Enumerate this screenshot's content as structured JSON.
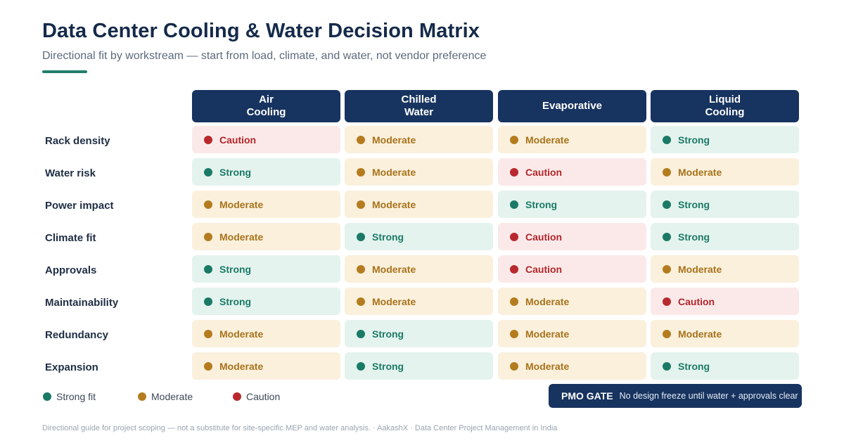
{
  "header": {
    "title": "Data Center Cooling & Water Decision Matrix",
    "subtitle": "Directional fit by workstream — start from load, climate, and water, not vendor preference"
  },
  "columns": [
    {
      "line1": "Air",
      "line2": "Cooling"
    },
    {
      "line1": "Chilled",
      "line2": "Water"
    },
    {
      "line1": "Evaporative",
      "line2": ""
    },
    {
      "line1": "Liquid",
      "line2": "Cooling"
    }
  ],
  "rows": [
    {
      "label": "Rack density",
      "cells": [
        "Caution",
        "Moderate",
        "Moderate",
        "Strong"
      ]
    },
    {
      "label": "Water risk",
      "cells": [
        "Strong",
        "Moderate",
        "Caution",
        "Moderate"
      ]
    },
    {
      "label": "Power impact",
      "cells": [
        "Moderate",
        "Moderate",
        "Strong",
        "Strong"
      ]
    },
    {
      "label": "Climate fit",
      "cells": [
        "Moderate",
        "Strong",
        "Caution",
        "Strong"
      ]
    },
    {
      "label": "Approvals",
      "cells": [
        "Strong",
        "Moderate",
        "Caution",
        "Moderate"
      ]
    },
    {
      "label": "Maintainability",
      "cells": [
        "Strong",
        "Moderate",
        "Moderate",
        "Caution"
      ]
    },
    {
      "label": "Redundancy",
      "cells": [
        "Moderate",
        "Strong",
        "Moderate",
        "Moderate"
      ]
    },
    {
      "label": "Expansion",
      "cells": [
        "Moderate",
        "Strong",
        "Moderate",
        "Strong"
      ]
    }
  ],
  "levels": {
    "Strong": {
      "dot": "#1a7a66",
      "text": "#1a7a66",
      "bg": "#e4f3ee"
    },
    "Moderate": {
      "dot": "#b57c1f",
      "text": "#a8721a",
      "bg": "#faf0dc"
    },
    "Caution": {
      "dot": "#b8292e",
      "text": "#b0272b",
      "bg": "#fbe9e9"
    }
  },
  "legend": [
    {
      "label": "Strong fit",
      "color": "#1a7a66"
    },
    {
      "label": "Moderate",
      "color": "#b57c1f"
    },
    {
      "label": "Caution",
      "color": "#b8292e"
    }
  ],
  "gate": {
    "label": "PMO GATE",
    "text": "No design freeze until water + approvals clear"
  },
  "footer": "Directional guide for project scoping — not a substitute for site-specific MEP and water analysis. · AakashX · Data Center Project Management in India",
  "colors": {
    "navy": "#17335f",
    "accent": "#1f7f6a"
  }
}
